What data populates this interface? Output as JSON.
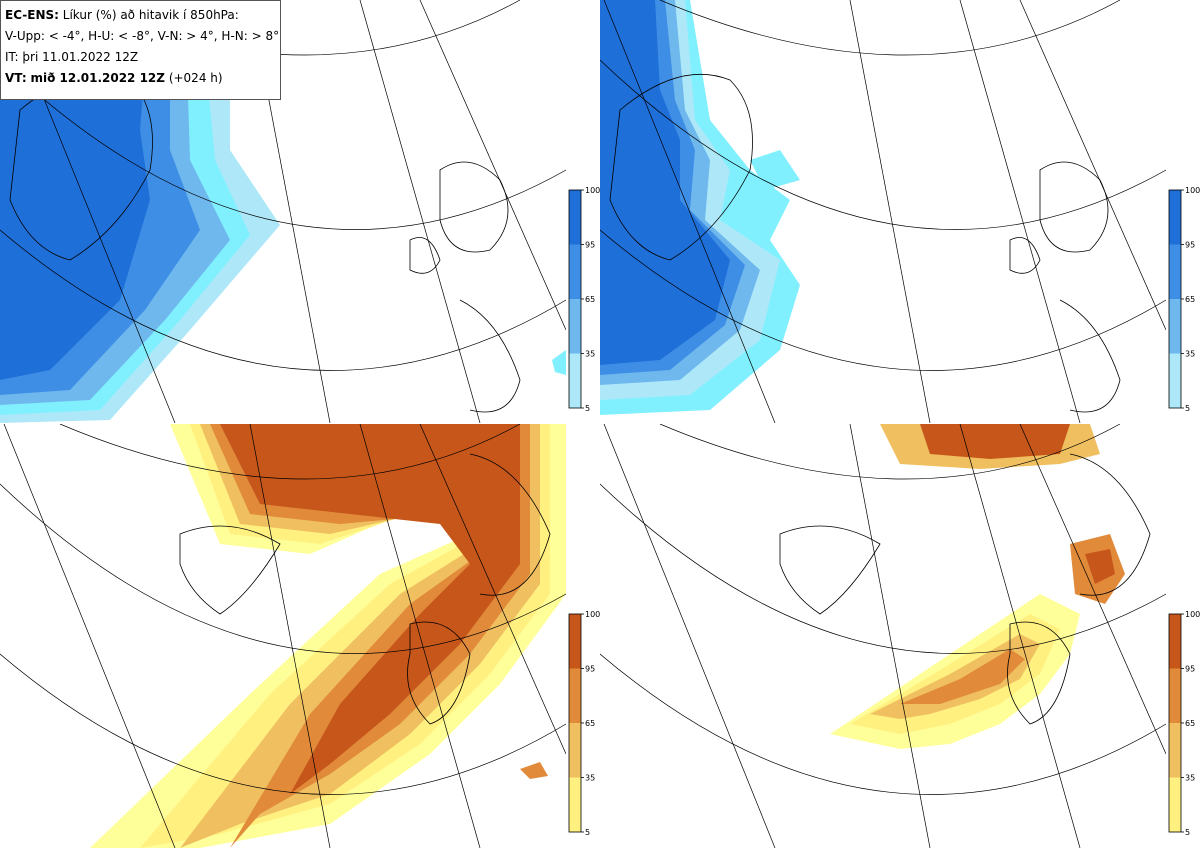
{
  "header": {
    "model": "EC-ENS:",
    "title": "Líkur (%) að hitavik í 850hPa:",
    "thresholds": "V-Upp: < -4°, H-U: < -8°, V-N: > 4°, H-N: > 8°",
    "it": "IT: þri 11.01.2022 12Z",
    "vt_label": "VT:",
    "vt_value": "mið 12.01.2022 12Z",
    "lead": "(+024 h)"
  },
  "colorbar_cold": {
    "ticks": [
      "100",
      "95",
      "65",
      "35",
      "5"
    ],
    "colors": [
      "#1f6fd8",
      "#3f8ee6",
      "#6fb8ee",
      "#aee8f8",
      "#80f0ff"
    ]
  },
  "colorbar_warm": {
    "ticks": [
      "100",
      "95",
      "65",
      "35",
      "5"
    ],
    "colors": [
      "#c6561a",
      "#e08a3a",
      "#f0c060",
      "#fff080",
      "#ffff9a"
    ]
  },
  "panels": [
    {
      "id": "top-left",
      "variable": "V-Upp"
    },
    {
      "id": "top-right",
      "variable": "H-U"
    },
    {
      "id": "bottom-left",
      "variable": "V-N"
    },
    {
      "id": "bottom-right",
      "variable": "H-N"
    }
  ]
}
